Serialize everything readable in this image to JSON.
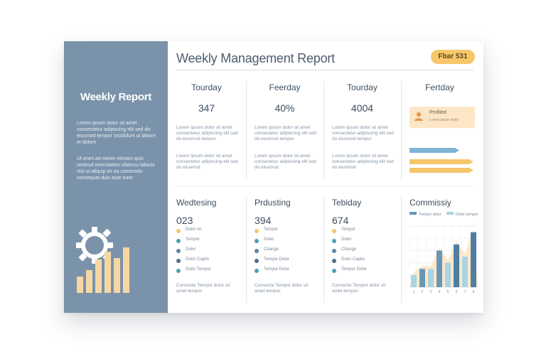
{
  "sidebar": {
    "title": "Weekly Report",
    "para1": "Lorem ipsum dolor sit amet consectetur adipiscing elit sed do eiusmod tempor incididunt ut labore et dolore",
    "para2": "Ut enim ad minim veniam quis nostrud exercitation ullamco laboris nisi ut aliquip ex ea commodo consequat duis aute irure",
    "bar_values": [
      22,
      30,
      44,
      54,
      46,
      60
    ],
    "colors": {
      "bg": "#7b93aa",
      "bars": "#f6d7a4"
    }
  },
  "header": {
    "title": "Weekly Management Report",
    "badge": "Fbar 531"
  },
  "top_columns": [
    {
      "head": "Tourday",
      "value": "347",
      "text1": "Lorem ipsum dolor sit amet consectetur adipiscing elit sed do eiusmod tempor",
      "text2": "Lorem ipsum dolor sit amet consectetur adipiscing elit sed do eiusmod"
    },
    {
      "head": "Feerday",
      "value": "40%",
      "text1": "Lorem ipsum dolor sit amet consectetur adipiscing elit sed do eiusmod tempor",
      "text2": "Lorem ipsum dolor sit amet consectetur adipiscing elit sed do eiusmod"
    },
    {
      "head": "Tourday",
      "value": "4004",
      "text1": "Lorem ipsum dolor sit amet consectetur adipiscing elit sed do eiusmod tempor",
      "text2": "Lorem ipsum dolor sit amet consectetur adipiscing elit sed do eiusmod"
    },
    {
      "head": "Fertday"
    }
  ],
  "profile": {
    "name": "Profiled",
    "sub": "Lorem ipsum dolor"
  },
  "arrows": [
    {
      "color": "#7fb3d6",
      "width": 70
    },
    {
      "color": "#f6c66a",
      "width": 90
    },
    {
      "color": "#f6c66a",
      "width": 90
    }
  ],
  "bottom_columns": [
    {
      "head": "Wedtesing",
      "value": "023",
      "items": [
        {
          "label": "Dolor sit",
          "color": "#f6c66a"
        },
        {
          "label": "Tempor",
          "color": "#4f9fb0"
        },
        {
          "label": "Dolor",
          "color": "#5b86a6"
        },
        {
          "label": "Dolor Capits",
          "color": "#4f6f8a"
        },
        {
          "label": "Dolor Tempor",
          "color": "#4f9fb0"
        }
      ],
      "text": "Consecte Tempor dolor sit amet tempor"
    },
    {
      "head": "Prdusting",
      "value": "394",
      "items": [
        {
          "label": "Tempor",
          "color": "#f6c66a"
        },
        {
          "label": "Dolor",
          "color": "#4f9fb0"
        },
        {
          "label": "Change",
          "color": "#5b86a6"
        },
        {
          "label": "Tempor Dolor",
          "color": "#4f6f8a"
        },
        {
          "label": "Tempor Dolor",
          "color": "#4f9fb0"
        }
      ],
      "text": "Consecte Tempor dolor sit amet tempor"
    },
    {
      "head": "Tebiday",
      "value": "674",
      "items": [
        {
          "label": "Tempor",
          "color": "#f6c66a"
        },
        {
          "label": "Dolor",
          "color": "#4f9fb0"
        },
        {
          "label": "Change",
          "color": "#5b86a6"
        },
        {
          "label": "Dolor Capits",
          "color": "#4f6f8a"
        },
        {
          "label": "Tempor Dolor",
          "color": "#4f9fb0"
        }
      ],
      "text": "Consecte Tempor dolor sit amet tempor"
    }
  ],
  "chart_data": {
    "type": "bar",
    "title": "Commissiy",
    "legend": [
      "Tempor dolor",
      "Dolor tempor"
    ],
    "categories": [
      "1",
      "2",
      "3",
      "4",
      "5",
      "6",
      "7",
      "8"
    ],
    "series": [
      {
        "name": "Tempor dolor",
        "values": [
          2,
          3,
          3,
          6,
          4,
          7,
          5,
          9
        ]
      }
    ],
    "ylim": [
      0,
      10
    ],
    "colors": [
      "#a9d4e3",
      "#6a96b5",
      "#4f7ea2"
    ],
    "grid": true,
    "legend_placement": "top"
  }
}
